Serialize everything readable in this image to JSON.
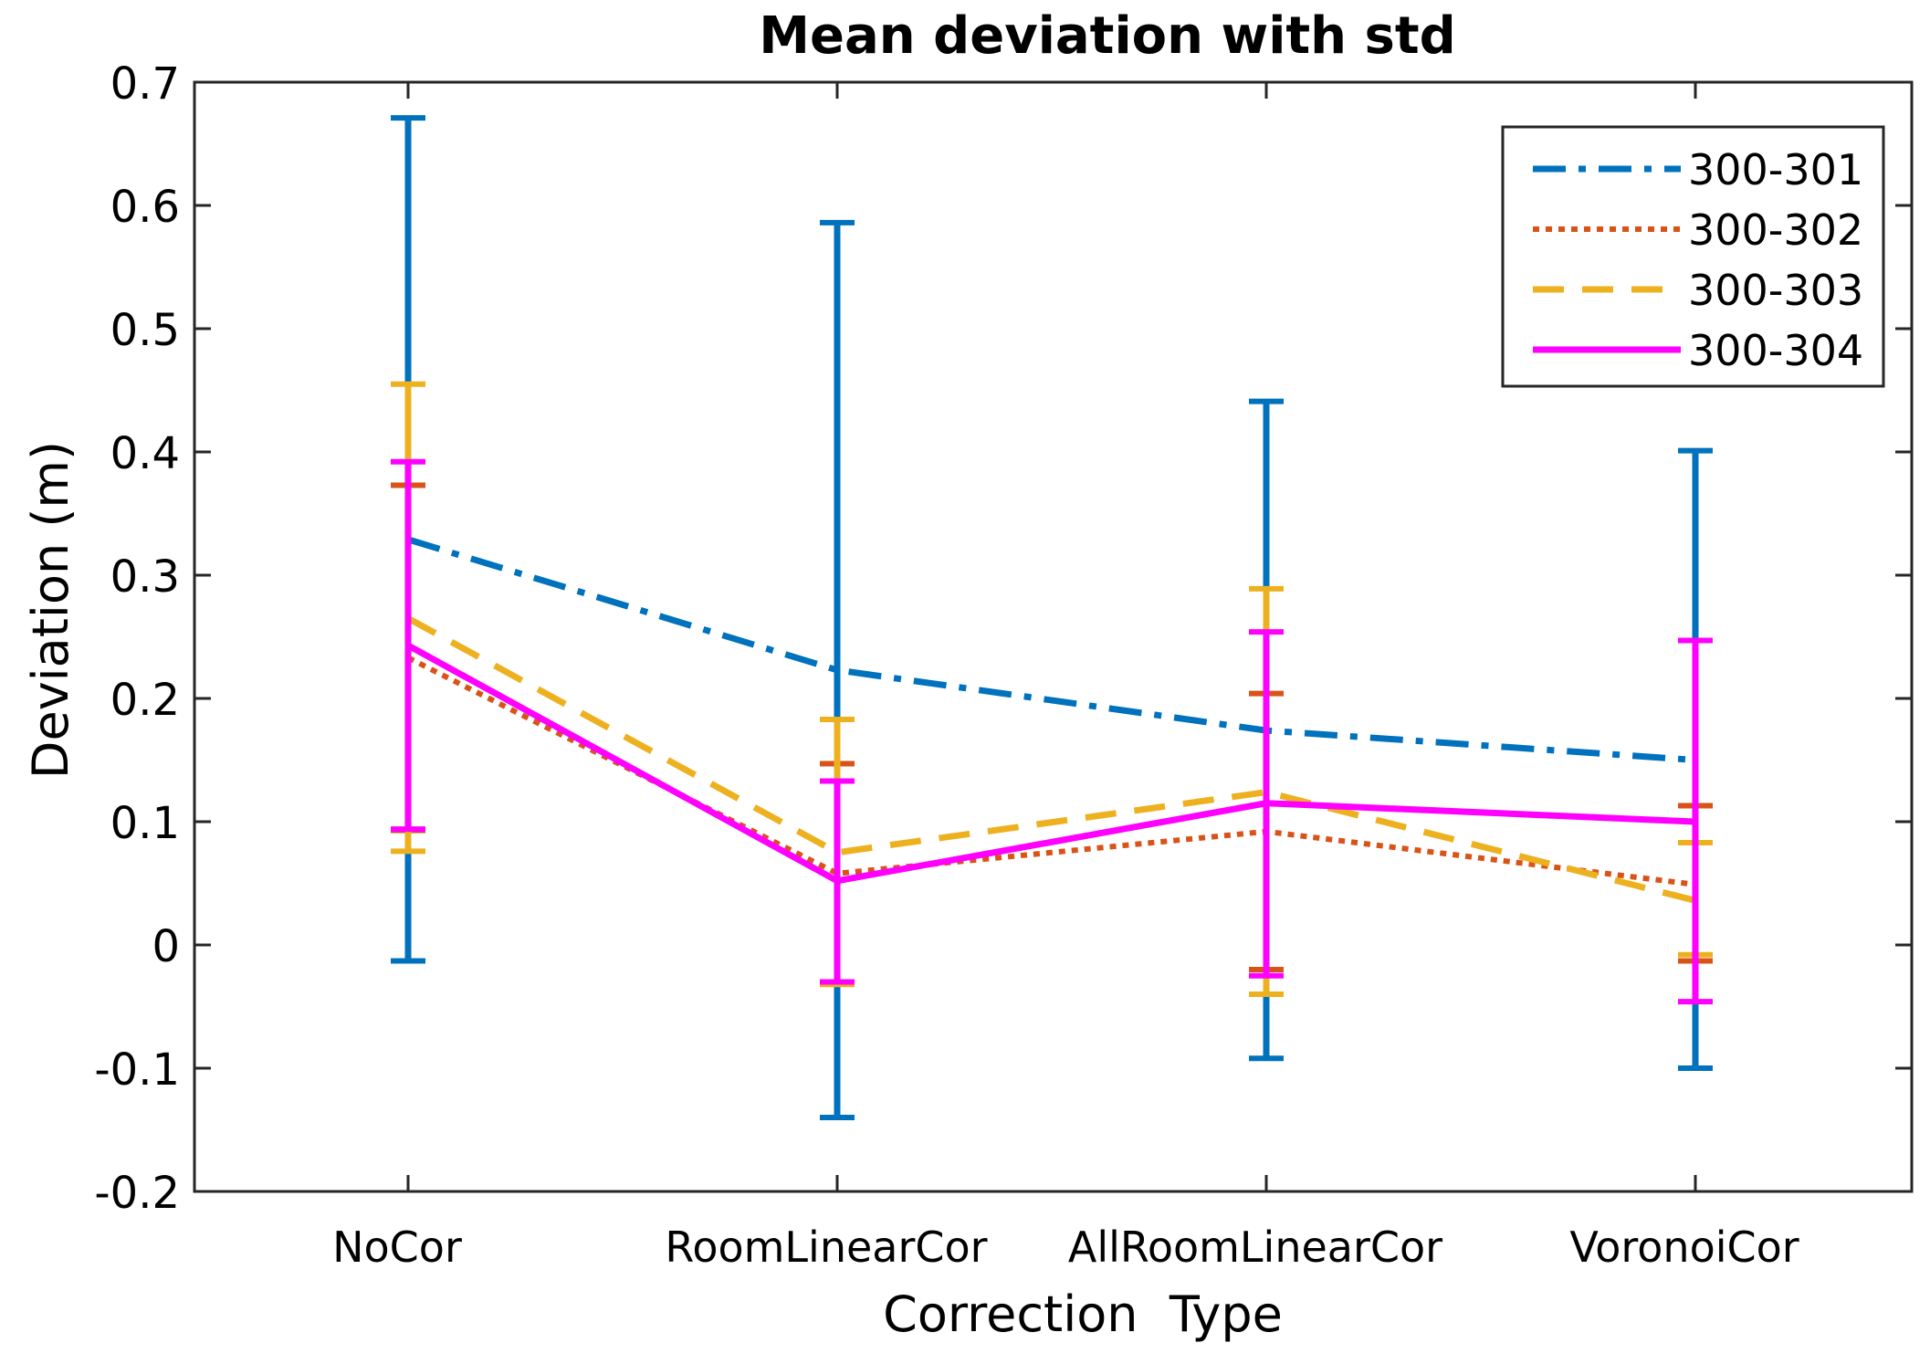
{
  "chart_data": {
    "type": "line",
    "title": "Mean deviation with std",
    "xlabel": "Correction  Type",
    "ylabel": "Deviation (m)",
    "categories": [
      "NoCor",
      "RoomLinearCor",
      "AllRoomLinearCor",
      "VoronoiCor"
    ],
    "ylim": [
      -0.2,
      0.7
    ],
    "yticks": [
      -0.2,
      -0.1,
      0,
      0.1,
      0.2,
      0.3,
      0.4,
      0.5,
      0.6,
      0.7
    ],
    "ytick_labels": [
      "-0.2",
      "-0.1",
      "0",
      "0.1",
      "0.2",
      "0.3",
      "0.4",
      "0.5",
      "0.6",
      "0.7"
    ],
    "grid": false,
    "legend_position": "top-right",
    "series": [
      {
        "name": "300-301",
        "color": "#0072BD",
        "line_style": "dash-dot",
        "values": [
          0.329,
          0.223,
          0.174,
          0.15
        ],
        "err_low": [
          -0.013,
          -0.14,
          -0.092,
          -0.1
        ],
        "err_high": [
          0.671,
          0.586,
          0.441,
          0.401
        ]
      },
      {
        "name": "300-302",
        "color": "#D95319",
        "line_style": "dotted",
        "values": [
          0.233,
          0.058,
          0.092,
          0.049
        ],
        "err_low": [
          0.093,
          -0.03,
          -0.02,
          -0.013
        ],
        "err_high": [
          0.373,
          0.147,
          0.204,
          0.113
        ]
      },
      {
        "name": "300-303",
        "color": "#EDB120",
        "line_style": "dashed",
        "values": [
          0.265,
          0.075,
          0.124,
          0.036
        ],
        "err_low": [
          0.076,
          -0.032,
          -0.04,
          -0.008
        ],
        "err_high": [
          0.455,
          0.183,
          0.289,
          0.083
        ]
      },
      {
        "name": "300-304",
        "color": "#FF00FF",
        "line_style": "solid",
        "values": [
          0.243,
          0.052,
          0.115,
          0.1
        ],
        "err_low": [
          0.094,
          -0.03,
          -0.025,
          -0.046
        ],
        "err_high": [
          0.392,
          0.133,
          0.254,
          0.247
        ]
      }
    ]
  }
}
